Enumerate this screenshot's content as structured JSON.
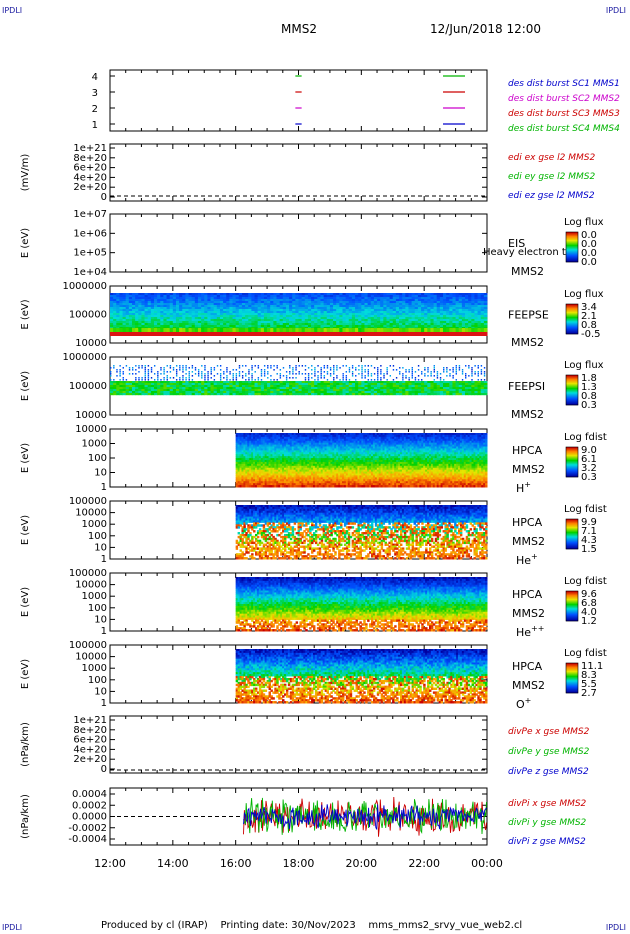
{
  "header": {
    "corner_label": "IPDLI",
    "spacecraft": "MMS2",
    "date_time": "12/Jun/2018 12:00"
  },
  "footer": {
    "produced_by": "Produced by cl (IRAP)",
    "printing_date": "Printing date: 30/Nov/2023",
    "script_name": "mms_mms2_srvy_vue_web2.cl"
  },
  "colors": {
    "mms1": "#00b400",
    "mms2": "#cc0000",
    "mms3": "#cc00cc",
    "mms4": "#0000cc",
    "x_component": "#cc0000",
    "y_component": "#00b400",
    "z_component": "#0000cc"
  },
  "chart_data": [
    {
      "type": "scatter",
      "id": "burst",
      "x_ticks": [
        "12:00",
        "14:00",
        "16:00",
        "18:00",
        "20:00",
        "22:00",
        "00:00"
      ],
      "y_ticks": [
        "4",
        "3",
        "2",
        "1"
      ],
      "legend": [
        "des dist burst SC1 MMS1",
        "des dist burst SC2 MMS2",
        "des dist burst SC3 MMS3",
        "des dist burst SC4 MMS4"
      ],
      "series": [
        {
          "sc": 4,
          "segments": [
            [
              17.9,
              18.1
            ],
            [
              22.6,
              23.3
            ]
          ]
        },
        {
          "sc": 3,
          "segments": [
            [
              17.9,
              18.1
            ],
            [
              22.6,
              23.3
            ]
          ]
        },
        {
          "sc": 2,
          "segments": [
            [
              17.9,
              18.1
            ],
            [
              22.6,
              23.3
            ]
          ]
        },
        {
          "sc": 1,
          "segments": [
            [
              17.9,
              18.1
            ],
            [
              22.6,
              23.3
            ]
          ]
        }
      ]
    },
    {
      "type": "line",
      "id": "edi",
      "ylabel": "(mV/m)",
      "y_ticks": [
        "1e+21",
        "8e+20",
        "6e+20",
        "4e+20",
        "2e+20",
        "0"
      ],
      "legend": [
        "edi ex gse l2 MMS2",
        "edi ey gse l2 MMS2",
        "edi ez gse l2 MMS2"
      ]
    },
    {
      "type": "heatmap",
      "id": "eis",
      "ylabel": "E (eV)",
      "y_ticks": [
        "1e+07",
        "1e+06",
        "1e+05",
        "1e+04"
      ],
      "instrument": "EIS",
      "overlay_text": "Heavy electron to",
      "spacecraft": "MMS2",
      "colorbar_title": "Log flux",
      "colorbar_ticks": [
        "0.0",
        "0.0",
        "0.0",
        "0.0"
      ]
    },
    {
      "type": "heatmap",
      "id": "feepse",
      "ylabel": "E (eV)",
      "y_ticks": [
        "1000000",
        "100000",
        "10000"
      ],
      "instrument": "FEEPSE",
      "spacecraft": "MMS2",
      "colorbar_title": "Log flux",
      "colorbar_ticks": [
        "3.4",
        "2.1",
        "0.8",
        "-0.5"
      ]
    },
    {
      "type": "heatmap",
      "id": "feepsi",
      "ylabel": "E (eV)",
      "y_ticks": [
        "1000000",
        "100000",
        "10000"
      ],
      "instrument": "FEEPSI",
      "spacecraft": "MMS2",
      "colorbar_title": "Log flux",
      "colorbar_ticks": [
        "1.8",
        "1.3",
        "0.8",
        "0.3"
      ]
    },
    {
      "type": "heatmap",
      "id": "hpca_h",
      "ylabel": "E (eV)",
      "y_ticks": [
        "10000",
        "1000",
        "100",
        "10",
        "1"
      ],
      "instrument": "HPCA",
      "spacecraft": "MMS2",
      "species": "H",
      "charge": "+",
      "colorbar_title": "Log fdist",
      "colorbar_ticks": [
        "9.0",
        "6.1",
        "3.2",
        "0.3"
      ]
    },
    {
      "type": "heatmap",
      "id": "hpca_he",
      "ylabel": "E (eV)",
      "y_ticks": [
        "100000",
        "10000",
        "1000",
        "100",
        "10",
        "1"
      ],
      "instrument": "HPCA",
      "spacecraft": "MMS2",
      "species": "He",
      "charge": "+",
      "colorbar_title": "Log fdist",
      "colorbar_ticks": [
        "9.9",
        "7.1",
        "4.3",
        "1.5"
      ]
    },
    {
      "type": "heatmap",
      "id": "hpca_he2",
      "ylabel": "E (eV)",
      "y_ticks": [
        "100000",
        "10000",
        "1000",
        "100",
        "10",
        "1"
      ],
      "instrument": "HPCA",
      "spacecraft": "MMS2",
      "species": "He",
      "charge": "++",
      "colorbar_title": "Log fdist",
      "colorbar_ticks": [
        "9.6",
        "6.8",
        "4.0",
        "1.2"
      ]
    },
    {
      "type": "heatmap",
      "id": "hpca_o",
      "ylabel": "E (eV)",
      "y_ticks": [
        "100000",
        "10000",
        "1000",
        "100",
        "10",
        "1"
      ],
      "instrument": "HPCA",
      "spacecraft": "MMS2",
      "species": "O",
      "charge": "+",
      "colorbar_title": "Log fdist",
      "colorbar_ticks": [
        "11.1",
        "8.3",
        "5.5",
        "2.7"
      ]
    },
    {
      "type": "line",
      "id": "divpe",
      "ylabel": "(nPa/km)",
      "y_ticks": [
        "1e+21",
        "8e+20",
        "6e+20",
        "4e+20",
        "2e+20",
        "0"
      ],
      "legend": [
        "divPe x gse MMS2",
        "divPe y gse MMS2",
        "divPe z gse MMS2"
      ]
    },
    {
      "type": "line",
      "id": "divpi",
      "ylabel": "(nPa/km)",
      "y_ticks": [
        "0.0004",
        "0.0002",
        "0.0000",
        "-0.0002",
        "-0.0004"
      ],
      "legend": [
        "divPi x gse MMS2",
        "divPi y gse MMS2",
        "divPi z gse MMS2"
      ],
      "data_start": "16:15",
      "data_end": "00:00"
    }
  ]
}
